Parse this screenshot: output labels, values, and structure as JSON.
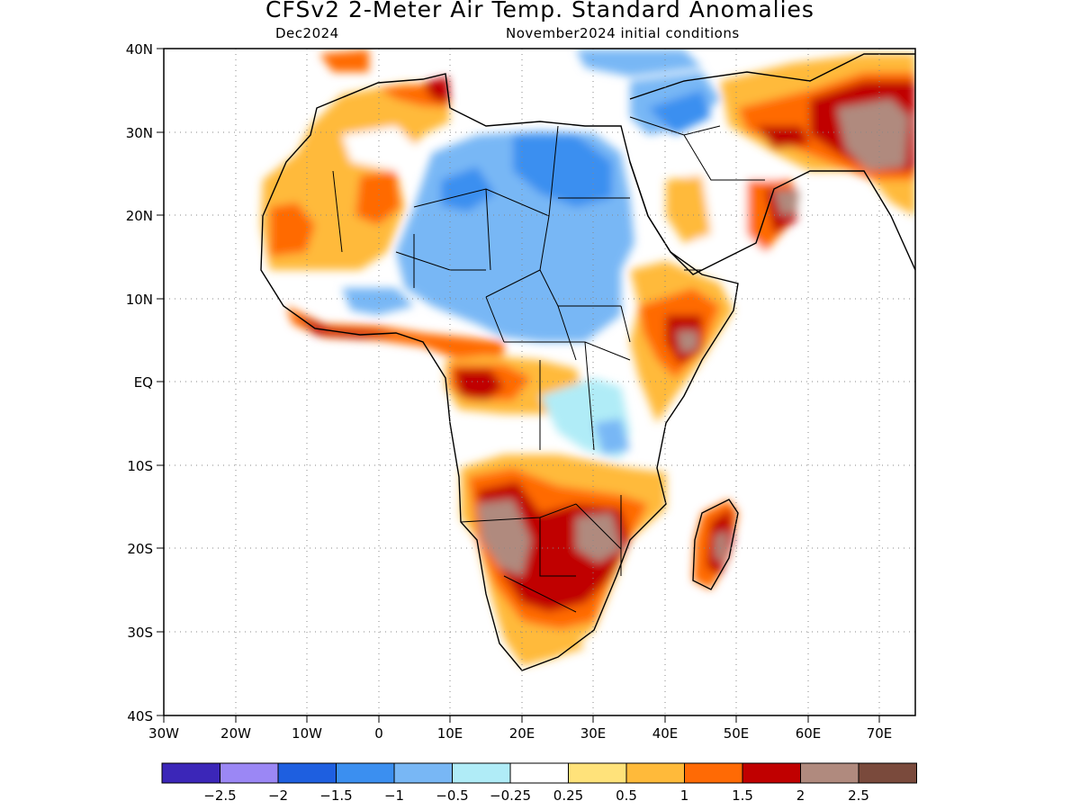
{
  "title": "CFSv2 2-Meter Air Temp. Standard Anomalies",
  "subtitle_left": "Dec2024",
  "subtitle_right": "November2024 initial conditions",
  "map": {
    "lon_range": [
      -30,
      75
    ],
    "lat_range": [
      -40,
      40
    ],
    "lon_ticks": [
      "30W",
      "20W",
      "10W",
      "0",
      "10E",
      "20E",
      "30E",
      "40E",
      "50E",
      "60E",
      "70E"
    ],
    "lat_ticks": [
      "40N",
      "30N",
      "20N",
      "10N",
      "EQ",
      "10S",
      "20S",
      "30S",
      "40S"
    ],
    "gridlines": true
  },
  "legend": {
    "colors": [
      "#3b26b8",
      "#9b87f5",
      "#1e5fe0",
      "#3b8ff0",
      "#78b7f5",
      "#b0ecf7",
      "#ffffff",
      "#ffe27a",
      "#ffba3a",
      "#ff6a05",
      "#c00000",
      "#b08a7e",
      "#7a4a3c"
    ],
    "labels": [
      "-2.5",
      "-2",
      "-1.5",
      "-1",
      "-0.5",
      "-0.25",
      "0.25",
      "0.5",
      "1",
      "1.5",
      "2",
      "2.5"
    ]
  }
}
